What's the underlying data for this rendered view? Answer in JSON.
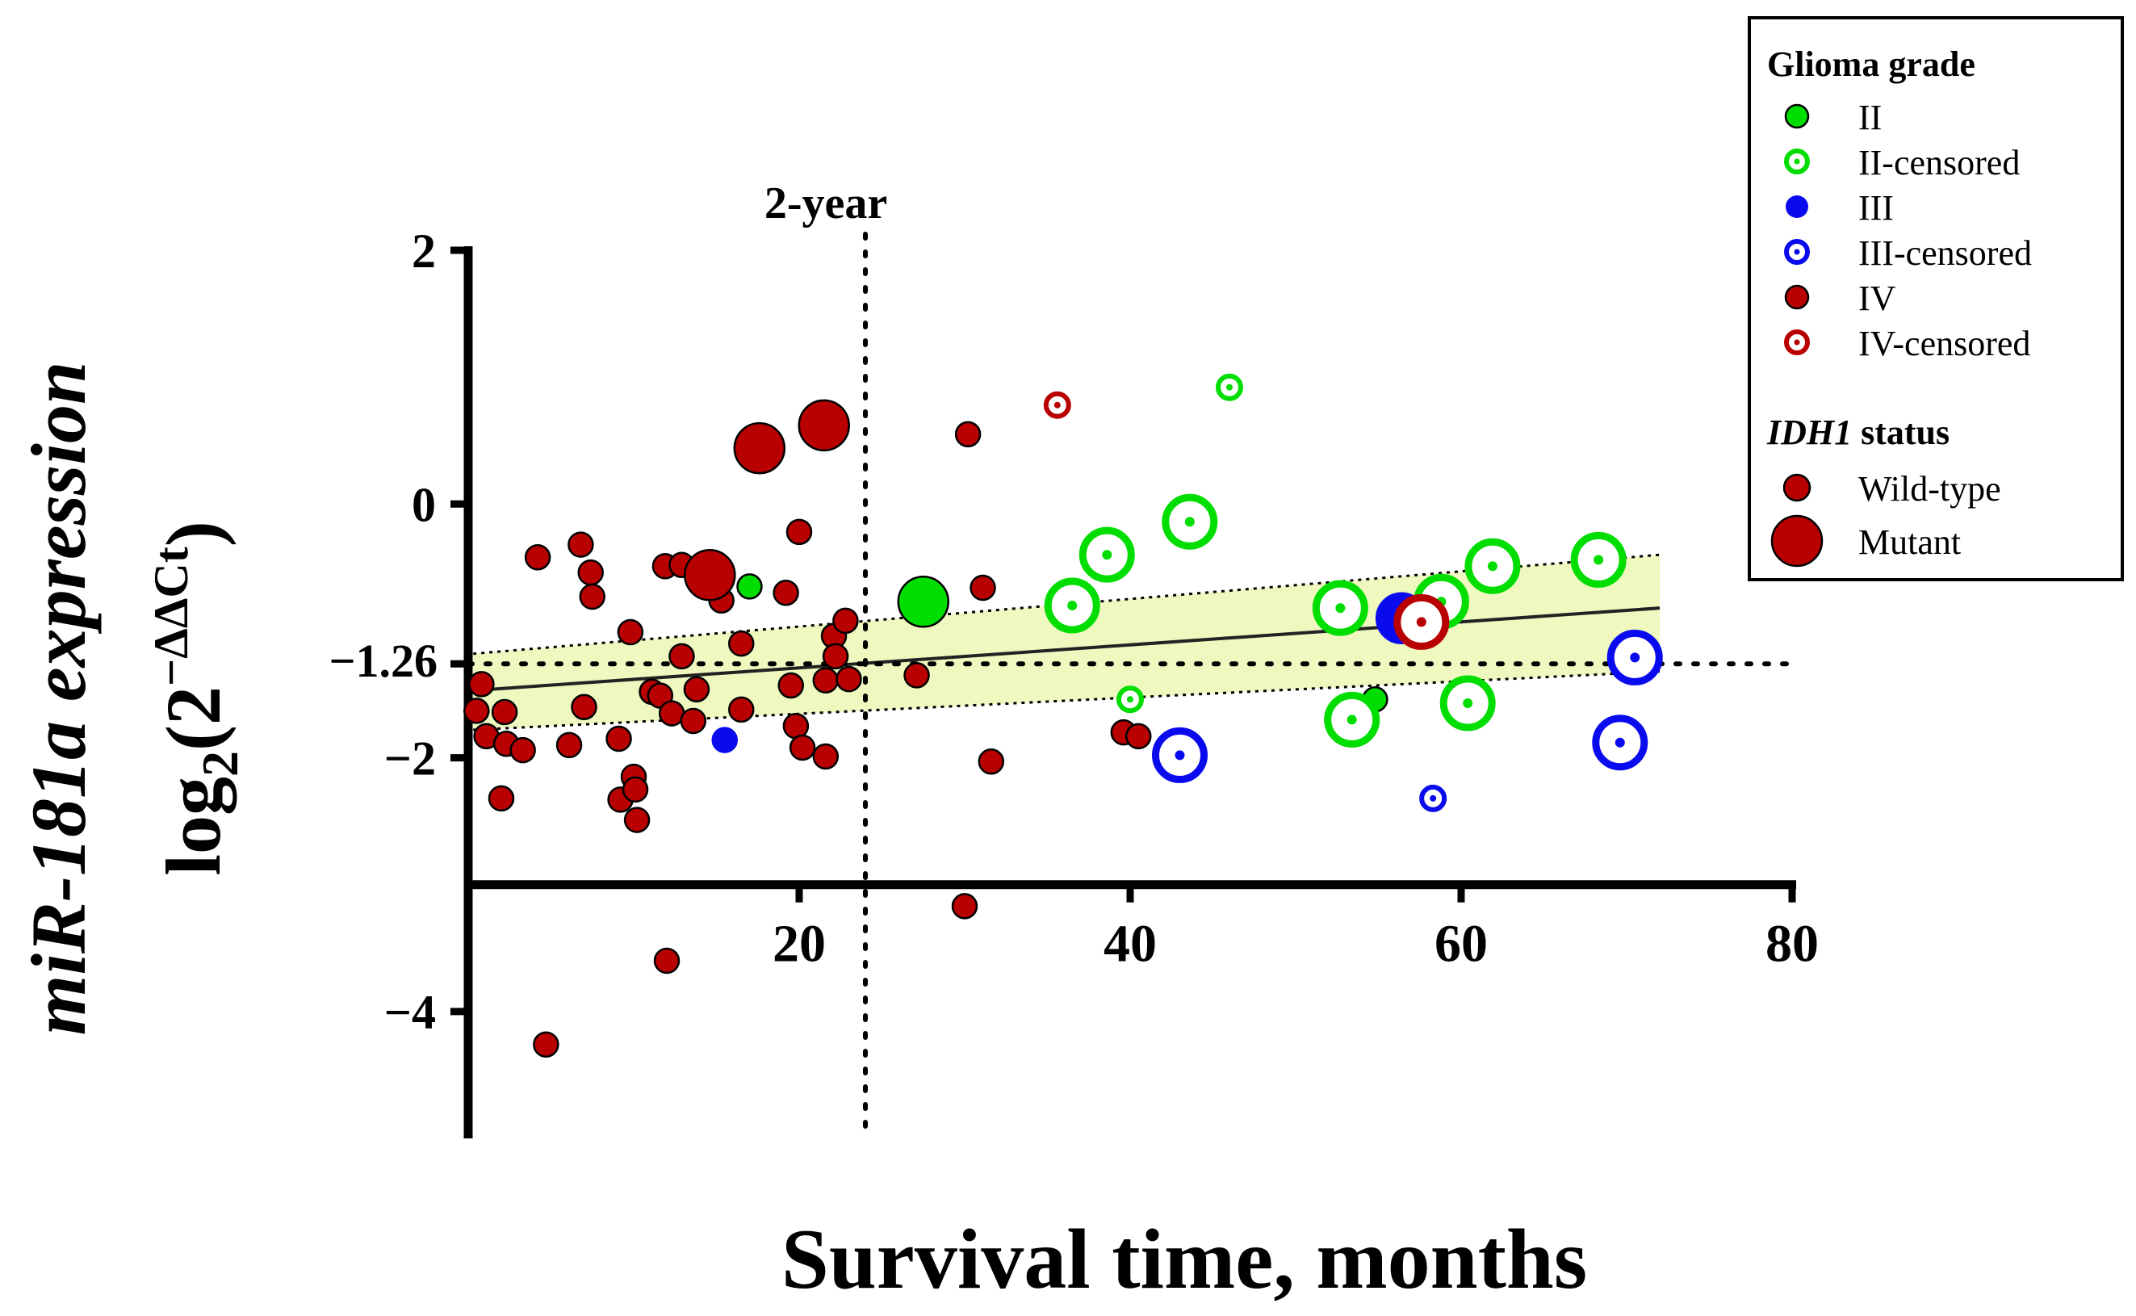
{
  "chart_data": {
    "type": "scatter",
    "title": "",
    "xlabel": "Survival time, months",
    "ylabel_line1": "miR-181a expression",
    "ylabel_line2_base": "log",
    "ylabel_line2_sub": "2",
    "ylabel_line2_paren_open": "(2",
    "ylabel_line2_sup": "−ΔΔCt",
    "ylabel_line2_paren_close": ")",
    "xlim": [
      0,
      80
    ],
    "ylim": [
      -5,
      2
    ],
    "x_ticks": [
      20,
      40,
      60,
      80
    ],
    "x_tick_labels": [
      "20",
      "40",
      "60",
      "80"
    ],
    "y_ticks": [
      2,
      0,
      -2,
      -4
    ],
    "y_tick_labels": [
      "2",
      "0",
      "−2",
      "−4"
    ],
    "reference_line": {
      "y": -1.26,
      "label": "−1.26"
    },
    "vertical_line": {
      "x": 24,
      "label": "2-year"
    },
    "regression": {
      "line": [
        [
          0.3,
          -1.47
        ],
        [
          72,
          -0.82
        ]
      ],
      "ci_upper": [
        [
          0.3,
          -1.18
        ],
        [
          72,
          -0.4
        ]
      ],
      "ci_lower": [
        [
          0.3,
          -1.78
        ],
        [
          72,
          -1.32
        ]
      ]
    },
    "colors": {
      "green": "#00dd00",
      "blue": "#0a0aee",
      "red": "#b80000",
      "band": "#eef8bf"
    },
    "series": [
      {
        "name": "II",
        "grade": "II",
        "censored": false,
        "points": [
          [
            17,
            -0.65,
            "wt"
          ],
          [
            54.8,
            -1.54,
            "wt"
          ],
          [
            27.5,
            -0.77,
            "mut"
          ]
        ]
      },
      {
        "name": "II-censored",
        "grade": "II",
        "censored": true,
        "points": [
          [
            46,
            0.92,
            "wt"
          ],
          [
            40,
            -1.54,
            "wt"
          ],
          [
            36.5,
            -0.8,
            "mut"
          ],
          [
            38.6,
            -0.4,
            "mut"
          ],
          [
            43.6,
            -0.14,
            "mut"
          ],
          [
            52.7,
            -0.82,
            "mut"
          ],
          [
            53.4,
            -1.7,
            "mut"
          ],
          [
            58.8,
            -0.77,
            "mut"
          ],
          [
            61.9,
            -0.49,
            "mut"
          ],
          [
            60.4,
            -1.57,
            "mut"
          ],
          [
            68.3,
            -0.44,
            "mut"
          ]
        ]
      },
      {
        "name": "III",
        "grade": "III",
        "censored": false,
        "points": [
          [
            15.5,
            -1.86,
            "wt"
          ],
          [
            56.4,
            -0.9,
            "mut"
          ]
        ]
      },
      {
        "name": "III-censored",
        "grade": "III-c",
        "censored": true,
        "points": [
          [
            58.3,
            -2.32,
            "wt"
          ],
          [
            43,
            -1.98,
            "mut"
          ],
          [
            70.5,
            -1.21,
            "mut"
          ],
          [
            69.6,
            -1.88,
            "mut"
          ]
        ]
      },
      {
        "name": "IV",
        "grade": "IV",
        "censored": false,
        "points": [
          [
            0.5,
            -1.63,
            "wt"
          ],
          [
            0.8,
            -1.42,
            "wt"
          ],
          [
            1.1,
            -1.83,
            "wt"
          ],
          [
            2.0,
            -2.32,
            "wt"
          ],
          [
            2.2,
            -1.64,
            "wt"
          ],
          [
            2.3,
            -1.89,
            "wt"
          ],
          [
            3.3,
            -1.94,
            "wt"
          ],
          [
            4.2,
            -0.42,
            "wt"
          ],
          [
            4.7,
            -4.26,
            "wt"
          ],
          [
            6.1,
            -1.9,
            "wt"
          ],
          [
            6.8,
            -0.32,
            "wt"
          ],
          [
            7.0,
            -1.6,
            "wt"
          ],
          [
            7.4,
            -0.54,
            "wt"
          ],
          [
            7.5,
            -0.73,
            "wt"
          ],
          [
            9.1,
            -1.85,
            "wt"
          ],
          [
            9.2,
            -2.33,
            "wt"
          ],
          [
            9.8,
            -1.01,
            "wt"
          ],
          [
            10.0,
            -2.15,
            "wt"
          ],
          [
            10.1,
            -2.25,
            "wt"
          ],
          [
            10.2,
            -2.49,
            "wt"
          ],
          [
            11.1,
            -1.48,
            "wt"
          ],
          [
            11.6,
            -1.51,
            "wt"
          ],
          [
            11.9,
            -0.49,
            "wt"
          ],
          [
            12.0,
            -3.6,
            "wt"
          ],
          [
            12.3,
            -1.65,
            "wt"
          ],
          [
            12.9,
            -0.48,
            "wt"
          ],
          [
            12.9,
            -1.2,
            "wt"
          ],
          [
            13.6,
            -1.71,
            "wt"
          ],
          [
            13.8,
            -1.46,
            "wt"
          ],
          [
            14.3,
            -0.57,
            "wt"
          ],
          [
            15.3,
            -0.76,
            "wt"
          ],
          [
            16.5,
            -1.1,
            "wt"
          ],
          [
            16.5,
            -1.62,
            "wt"
          ],
          [
            19.2,
            -0.7,
            "wt"
          ],
          [
            19.5,
            -1.43,
            "wt"
          ],
          [
            19.8,
            -1.75,
            "wt"
          ],
          [
            20.0,
            -0.22,
            "wt"
          ],
          [
            20.2,
            -1.92,
            "wt"
          ],
          [
            21.6,
            -1.99,
            "wt"
          ],
          [
            21.6,
            -1.39,
            "wt"
          ],
          [
            22.1,
            -1.04,
            "wt"
          ],
          [
            22.2,
            -1.2,
            "wt"
          ],
          [
            22.8,
            -0.92,
            "wt"
          ],
          [
            23.0,
            -1.38,
            "wt"
          ],
          [
            27.1,
            -1.35,
            "wt"
          ],
          [
            30.0,
            -3.17,
            "wt"
          ],
          [
            30.2,
            0.55,
            "wt"
          ],
          [
            31.1,
            -0.66,
            "wt"
          ],
          [
            31.6,
            -2.03,
            "wt"
          ],
          [
            39.6,
            -1.8,
            "wt"
          ],
          [
            40.5,
            -1.83,
            "wt"
          ],
          [
            14.6,
            -0.56,
            "mut"
          ],
          [
            17.6,
            0.44,
            "mut"
          ],
          [
            21.5,
            0.62,
            "mut"
          ]
        ]
      },
      {
        "name": "IV-censored",
        "grade": "IV",
        "censored": true,
        "points": [
          [
            35.6,
            0.78,
            "wt"
          ],
          [
            57.6,
            -0.93,
            "mut"
          ]
        ]
      }
    ]
  },
  "legend": {
    "grade_title": "Glioma grade",
    "grade_items": [
      {
        "label": "II",
        "color": "#00dd00",
        "censored": false
      },
      {
        "label": "II-censored",
        "color": "#00dd00",
        "censored": true
      },
      {
        "label": "III",
        "color": "#0a0aee",
        "censored": false
      },
      {
        "label": "III-censored",
        "color": "#0a0aee",
        "censored": true
      },
      {
        "label": "IV",
        "color": "#b80000",
        "censored": false
      },
      {
        "label": "IV-censored",
        "color": "#b80000",
        "censored": true
      }
    ],
    "idh_title_italic": "IDH1",
    "idh_title_rest": " status",
    "idh_items": [
      {
        "label": "Wild-type",
        "size": "small"
      },
      {
        "label": "Mutant",
        "size": "large"
      }
    ]
  }
}
